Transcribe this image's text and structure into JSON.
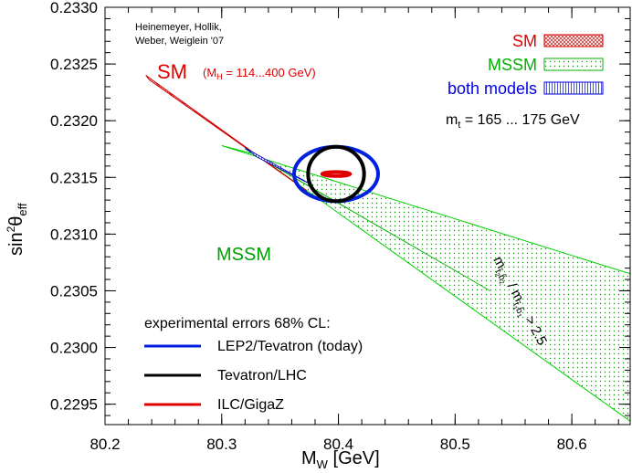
{
  "chart_data": {
    "type": "area",
    "xlabel": "M",
    "xlabel_sub": "W",
    "xlabel_unit": " [GeV]",
    "ylabel": "sin",
    "ylabel_sup": "2",
    "ylabel_theta": "θ",
    "ylabel_sub": "eff",
    "xlim": [
      80.2,
      80.65
    ],
    "ylim": [
      0.22932,
      0.233
    ],
    "xticks": [
      80.2,
      80.3,
      80.4,
      80.5,
      80.6
    ],
    "xtick_labels": [
      "80.2",
      "80.3",
      "80.4",
      "80.5",
      "80.6"
    ],
    "yticks": [
      0.2295,
      0.23,
      0.2305,
      0.231,
      0.2315,
      0.232,
      0.2325,
      0.233
    ],
    "ytick_labels": [
      "0.2295",
      "0.2300",
      "0.2305",
      "0.2310",
      "0.2315",
      "0.2320",
      "0.2325",
      "0.2330"
    ],
    "credit": [
      "Heinemeyer, Hollik,",
      "Weber, Weiglein '07"
    ],
    "legend": [
      {
        "name": "SM",
        "color": "#e00000",
        "pattern": "sm"
      },
      {
        "name": "MSSM",
        "color": "#00b000",
        "pattern": "mssm"
      },
      {
        "name": "both models",
        "color": "#0000e0",
        "pattern": "both"
      }
    ],
    "mt_label": "m",
    "mt_sub": "t",
    "mt_rest": " = 165 ... 175 GeV",
    "sm_label": "SM",
    "mh_label_pre": "(M",
    "mh_label_sub": "H",
    "mh_label_post": " = 114...400 GeV)",
    "mssm_label": "MSSM",
    "stop_label": "m",
    "stop_sub1": "t̃",
    "stop_sub1b": "2",
    "stop_sub1c": "b̃",
    "stop_sub1d": "2",
    "stop_mid": " / m",
    "stop_sub2": "t̃",
    "stop_sub2b": "1",
    "stop_sub2c": "b̃",
    "stop_sub2d": "1",
    "stop_tail": " > 2.5",
    "errors_title": "experimental errors 68% CL:",
    "errors": [
      {
        "name": "LEP2/Tevatron (today)",
        "color": "#0020e0"
      },
      {
        "name": "Tevatron/LHC",
        "color": "#000000"
      },
      {
        "name": "ILC/GigaZ",
        "color": "#e00000"
      }
    ],
    "regions": {
      "mssm": [
        [
          80.3,
          0.23178
        ],
        [
          80.65,
          0.23065
        ],
        [
          80.65,
          0.22935
        ],
        [
          80.33,
          0.2317
        ]
      ],
      "sm": [
        [
          80.235,
          0.2324
        ],
        [
          80.373,
          0.23138
        ],
        [
          80.238,
          0.23236
        ]
      ],
      "sm_inner_mssm": [
        [
          80.32,
          0.23175
        ],
        [
          80.53,
          0.2305
        ],
        [
          80.37,
          0.23145
        ]
      ],
      "both": [
        [
          80.32,
          0.23176
        ],
        [
          80.378,
          0.23143
        ],
        [
          80.33,
          0.23168
        ]
      ]
    },
    "ellipses": [
      {
        "name": "LEP2/Tevatron (today)",
        "center": [
          80.398,
          0.23153
        ],
        "radius": [
          0.036,
          0.00024
        ],
        "color": "#0020e0"
      },
      {
        "name": "Tevatron/LHC",
        "center": [
          80.398,
          0.23153
        ],
        "radius": [
          0.024,
          0.00024
        ],
        "color": "#000000"
      },
      {
        "name": "ILC/GigaZ",
        "center": [
          80.398,
          0.23153
        ],
        "radius": [
          0.012,
          1.8e-05
        ],
        "color": "#e00000"
      }
    ]
  }
}
